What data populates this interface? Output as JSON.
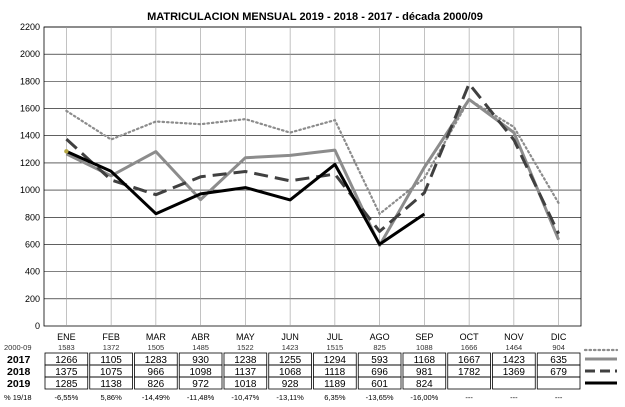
{
  "chart_data": {
    "type": "line",
    "title": "MATRICULACION MENSUAL  2019 - 2018 - 2017 - década 2000/09",
    "categories": [
      "ENE",
      "FEB",
      "MAR",
      "ABR",
      "MAY",
      "JUN",
      "JUL",
      "AGO",
      "SEP",
      "OCT",
      "NOV",
      "DIC"
    ],
    "ylim": [
      0,
      2200
    ],
    "yticks": [
      0,
      200,
      400,
      600,
      800,
      1000,
      1200,
      1400,
      1600,
      1800,
      2000,
      2200
    ],
    "grid": true,
    "decade_label": "2000-09",
    "decade_values": [
      1583,
      1372,
      1505,
      1485,
      1522,
      1423,
      1515,
      825,
      1088,
      1666,
      1464,
      904
    ],
    "series": [
      {
        "name": "2017",
        "color": "#8c8c8c",
        "style": "solid",
        "values": [
          1266,
          1105,
          1283,
          930,
          1238,
          1255,
          1294,
          593,
          1168,
          1667,
          1423,
          635
        ],
        "labels": [
          "1266",
          "1105",
          "1283",
          "930",
          "1238",
          "1255",
          "1294",
          "593",
          "1168",
          "1667",
          "1423",
          "635"
        ]
      },
      {
        "name": "2018",
        "color": "#404040",
        "style": "dashed",
        "values": [
          1375,
          1075,
          966,
          1098,
          1137,
          1068,
          1118,
          696,
          981,
          1782,
          1369,
          679
        ],
        "labels": [
          "1375",
          "1075",
          "966",
          "1098",
          "1137",
          "1068",
          "1118",
          "696",
          "981",
          "1782",
          "1369",
          "679"
        ]
      },
      {
        "name": "2019",
        "color": "#000000",
        "style": "solid",
        "values": [
          1285,
          1138,
          826,
          972,
          1018,
          928,
          1189,
          601,
          824,
          null,
          null,
          null
        ],
        "labels": [
          "1285",
          "1138",
          "826",
          "972",
          "1018",
          "928",
          "1189",
          "601",
          "824",
          "",
          "",
          ""
        ]
      }
    ],
    "pct_label": "% 19/18",
    "pct_values": [
      "-6,55%",
      "5,86%",
      "-14,49%",
      "-11,48%",
      "-10,47%",
      "-13,11%",
      "6,35%",
      "-13,65%",
      "-16,00%",
      "---",
      "---",
      "---"
    ]
  }
}
